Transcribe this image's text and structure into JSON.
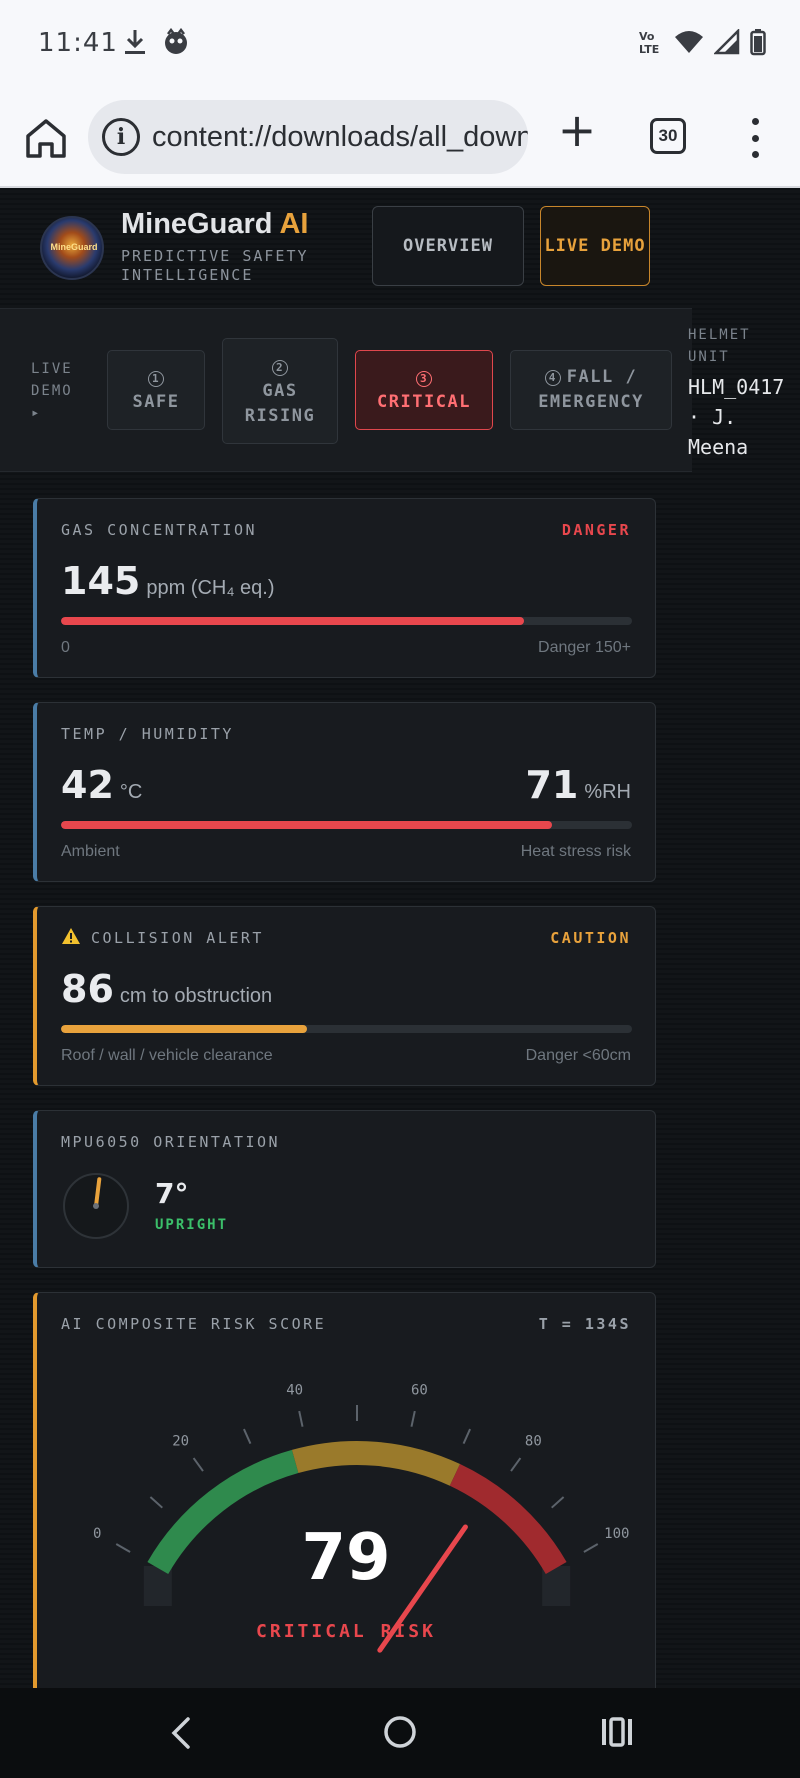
{
  "status_bar": {
    "time": "11:41",
    "icons_left": [
      "download-icon",
      "notification-icon"
    ],
    "icons_right": [
      "volte-icon",
      "wifi-icon",
      "signal-icon",
      "battery-icon"
    ]
  },
  "browser": {
    "url": "content://downloads/all_downloads",
    "tab_count": "30"
  },
  "header": {
    "brand_main": "MineGuard",
    "brand_ai": "AI",
    "logo_text": "MineGuard",
    "tagline": "PREDICTIVE SAFETY INTELLIGENCE",
    "overview_label": "OVERVIEW",
    "live_demo_label": "LIVE DEMO"
  },
  "demo": {
    "label": "LIVE DEMO ▸",
    "steps": [
      {
        "num": "1",
        "label": "SAFE"
      },
      {
        "num": "2",
        "label": "GAS RISING"
      },
      {
        "num": "3",
        "label": "CRITICAL"
      },
      {
        "num": "4",
        "label": "FALL / EMERGENCY"
      }
    ],
    "active_step": 3,
    "helmet_label": "HELMET UNIT",
    "helmet_value": "HLM_0417\n· J.\nMeena"
  },
  "gas": {
    "title": "GAS CONCENTRATION",
    "status": "DANGER",
    "value": "145",
    "unit": "ppm (CH₄ eq.)",
    "level": 0.81,
    "min_label": "0",
    "max_label": "Danger 150+"
  },
  "temp": {
    "title": "TEMP / HUMIDITY",
    "value": "42",
    "unit": "°C",
    "humidity": "71",
    "humidity_unit": "%RH",
    "level": 0.86,
    "left_label": "Ambient",
    "right_label": "Heat stress risk"
  },
  "collision": {
    "title": "COLLISION ALERT",
    "status": "CAUTION",
    "value": "86",
    "unit": "cm to obstruction",
    "level": 0.43,
    "left_label": "Roof / wall / vehicle clearance",
    "right_label": "Danger <60cm"
  },
  "orientation": {
    "title": "MPU6050 ORIENTATION",
    "angle": "7°",
    "angle_deg": 7,
    "state": "UPRIGHT"
  },
  "risk": {
    "title": "AI COMPOSITE RISK SCORE",
    "time": "T = 134S",
    "score": "79",
    "score_value": 79,
    "label": "CRITICAL RISK",
    "tick_labels": [
      "0",
      "20",
      "40",
      "60",
      "80",
      "100"
    ]
  },
  "colors": {
    "danger": "#e8474d",
    "caution": "#e8a23c",
    "ok": "#3bbf6a",
    "accent_blue": "#4a7ca6"
  }
}
